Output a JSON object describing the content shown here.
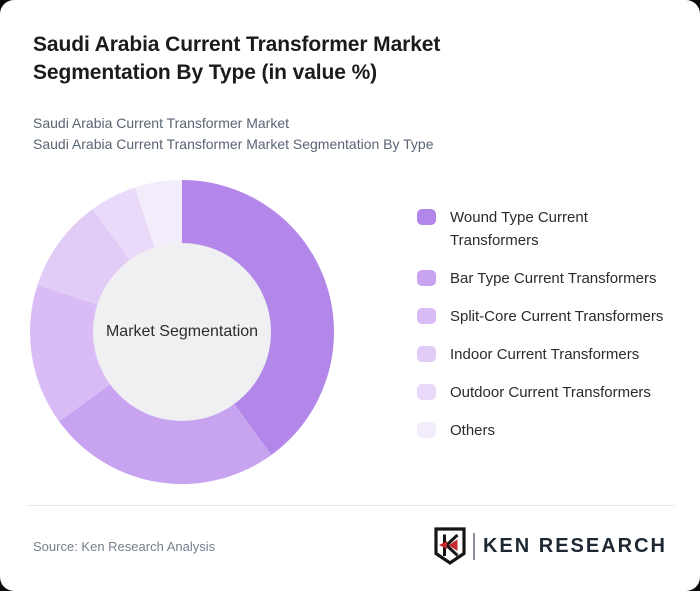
{
  "card": {
    "title": "Saudi Arabia Current Transformer Market Segmentation By Type (in value %)",
    "subtitle_line1": "Saudi Arabia Current Transformer Market",
    "subtitle_line2": "Saudi Arabia Current Transformer Market Segmentation By Type"
  },
  "chart_data": {
    "type": "pie",
    "subtype": "donut",
    "title": "Saudi Arabia Current Transformer Market Segmentation By Type (in value %)",
    "unit": "value %",
    "center_label": "Market Segmentation",
    "center_fill": "#f0eff1",
    "start_angle_deg": 0,
    "direction": "clockwise",
    "legend_position": "right",
    "segments": [
      {
        "label": "Wound Type Current Transformers",
        "value": 40,
        "color": "#b287e9"
      },
      {
        "label": "Bar Type Current Transformers",
        "value": 25,
        "color": "#c7a3f0"
      },
      {
        "label": "Split-Core Current Transformers",
        "value": 15,
        "color": "#d9bcf5"
      },
      {
        "label": "Indoor Current Transformers",
        "value": 10,
        "color": "#e1ccf7"
      },
      {
        "label": "Outdoor Current Transformers",
        "value": 5,
        "color": "#e9daf9"
      },
      {
        "label": "Others",
        "value": 5,
        "color": "#f2ecfb"
      }
    ]
  },
  "footer": {
    "source": "Source: Ken Research Analysis",
    "logo": {
      "monogram": "K",
      "text": "KEN RESEARCH",
      "accent_red": "#c22a2e",
      "ink": "#1e2833"
    }
  }
}
